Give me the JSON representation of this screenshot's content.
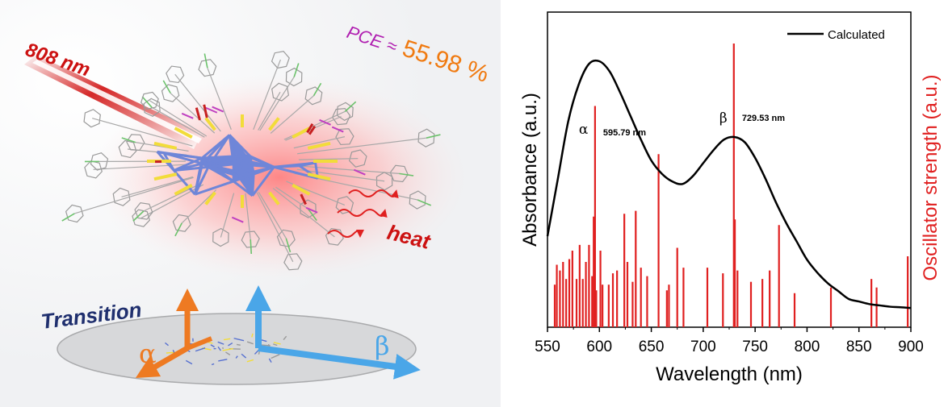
{
  "illustration": {
    "laser_label": "808 nm",
    "pce_prefix": "PCE",
    "pce_sign": "≈",
    "pce_value": "55.98 %",
    "heat_label": "heat",
    "transition_label": "Transition",
    "alpha_label": "α",
    "beta_label": "β",
    "colors": {
      "laser": "#cc1111",
      "pce_prefix": "#b01fb0",
      "pce_value": "#f07a10",
      "heat": "#cc1111",
      "transition": "#1f2f6e",
      "alpha": "#ee7a22",
      "beta": "#4aa6e8",
      "cluster_core": "#6f86d8",
      "cluster_gold": "#f2dc3a",
      "ligand": "#9a9a9a"
    },
    "icons": [
      "laser-beam",
      "nanocluster-molecule",
      "heat-wave",
      "transition-dipole-axes"
    ]
  },
  "chart_data": {
    "type": "line",
    "xlabel": "Wavelength (nm)",
    "ylabel_left": "Absorbance (a.u.)",
    "ylabel_right": "Oscillator strength (a.u.)",
    "xlim": [
      550,
      900
    ],
    "xticks": [
      550,
      600,
      650,
      700,
      750,
      800,
      850,
      900
    ],
    "legend": {
      "position": "top-right",
      "label": "Calculated"
    },
    "series": [
      {
        "name": "Calculated",
        "color": "#000000",
        "x": [
          550,
          560,
          570,
          580,
          590,
          600,
          610,
          620,
          630,
          640,
          650,
          660,
          670,
          680,
          690,
          700,
          710,
          720,
          730,
          740,
          750,
          760,
          770,
          780,
          790,
          800,
          810,
          820,
          830,
          840,
          850,
          860,
          870,
          880,
          890,
          900
        ],
        "y": [
          0.33,
          0.55,
          0.77,
          0.91,
          0.99,
          1.0,
          0.96,
          0.88,
          0.79,
          0.7,
          0.62,
          0.57,
          0.54,
          0.53,
          0.56,
          0.61,
          0.66,
          0.7,
          0.71,
          0.69,
          0.63,
          0.55,
          0.46,
          0.38,
          0.31,
          0.24,
          0.19,
          0.15,
          0.12,
          0.09,
          0.08,
          0.07,
          0.065,
          0.06,
          0.058,
          0.055
        ]
      }
    ],
    "sticks": {
      "color": "#e02020",
      "x": [
        557,
        559,
        562,
        565,
        568,
        571,
        574,
        578,
        581,
        584,
        587,
        590,
        593,
        594.5,
        595.8,
        597,
        601,
        603,
        609,
        613,
        617,
        624,
        627,
        632,
        635,
        640,
        646,
        657,
        665,
        667,
        675,
        681,
        704,
        719,
        729.5,
        730.5,
        733,
        746,
        757,
        764,
        773,
        788,
        823,
        862,
        867,
        897
      ],
      "y": [
        0.15,
        0.22,
        0.2,
        0.23,
        0.17,
        0.24,
        0.27,
        0.17,
        0.29,
        0.17,
        0.23,
        0.29,
        0.18,
        0.39,
        0.78,
        0.13,
        0.27,
        0.15,
        0.15,
        0.19,
        0.2,
        0.4,
        0.23,
        0.16,
        0.41,
        0.21,
        0.18,
        0.61,
        0.13,
        0.15,
        0.28,
        0.21,
        0.21,
        0.19,
        1.0,
        0.38,
        0.2,
        0.16,
        0.17,
        0.2,
        0.36,
        0.12,
        0.14,
        0.17,
        0.14,
        0.25
      ]
    },
    "annotations": [
      {
        "symbol": "α",
        "text": "595.79 nm",
        "x": 595.79
      },
      {
        "symbol": "β",
        "text": "729.53 nm",
        "x": 729.53
      }
    ]
  }
}
